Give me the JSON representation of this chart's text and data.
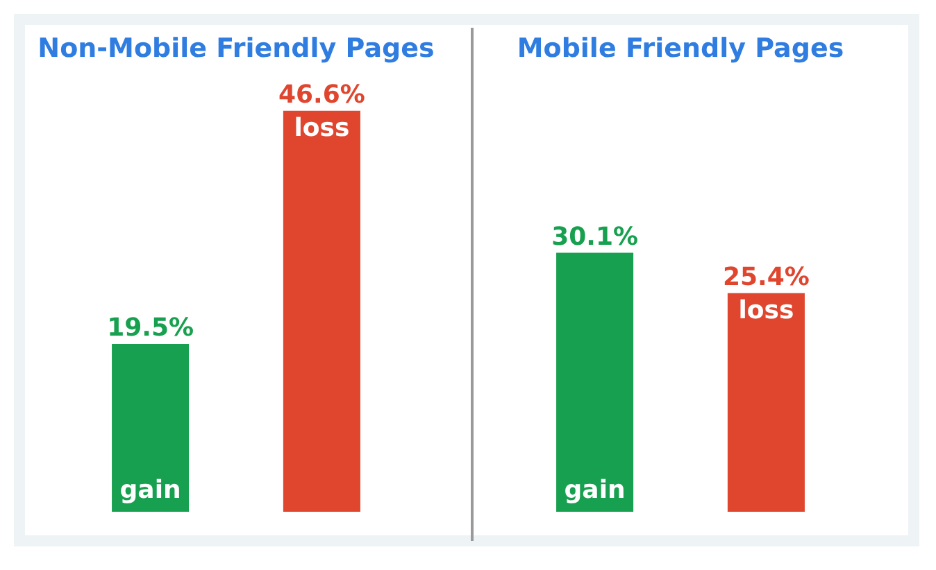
{
  "chart_data": [
    {
      "type": "bar",
      "title": "Non-Mobile Friendly Pages",
      "categories": [
        null,
        null
      ],
      "values": [
        19.5,
        46.6
      ],
      "colors": [
        "#17a04f",
        "#e0452e"
      ],
      "value_labels": [
        "19.5%",
        "46.6%"
      ],
      "annotations": [
        "gain",
        "loss"
      ]
    },
    {
      "type": "bar",
      "title": "Mobile Friendly Pages",
      "categories": [
        null,
        null
      ],
      "values": [
        30.1,
        25.4
      ],
      "colors": [
        "#17a04f",
        "#e0452e"
      ],
      "value_labels": [
        "30.1%",
        "25.4%"
      ],
      "annotations": [
        "gain",
        "loss"
      ]
    }
  ]
}
